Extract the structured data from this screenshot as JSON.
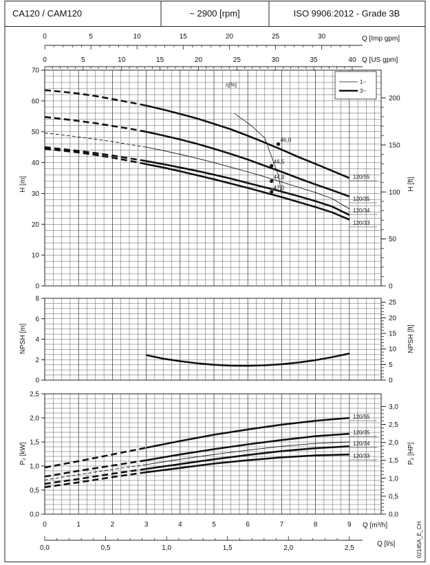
{
  "header": {
    "model": "CA120 / CAM120",
    "speed": "~ 2900 [rpm]",
    "standard": "ISO 9906:2012 - Grade 3B"
  },
  "side_code": "02145A_E_CH",
  "axes": {
    "q_imp": {
      "label": "Q [Imp gpm]",
      "ticks": [
        "0",
        "5",
        "10",
        "15",
        "20",
        "25",
        "30"
      ],
      "values": [
        0,
        5,
        10,
        15,
        20,
        25,
        30
      ]
    },
    "q_us": {
      "label": "Q [US gpm]",
      "ticks": [
        "0",
        "5",
        "10",
        "15",
        "20",
        "25",
        "30",
        "35",
        "40"
      ],
      "values": [
        0,
        5,
        10,
        15,
        20,
        25,
        30,
        35,
        40
      ]
    },
    "q_m3h": {
      "label": "Q [m³/h]",
      "ticks": [
        "0",
        "1",
        "2",
        "3",
        "4",
        "5",
        "6",
        "7",
        "8",
        "9"
      ],
      "values": [
        0,
        1,
        2,
        3,
        4,
        5,
        6,
        7,
        8,
        9
      ]
    },
    "q_ls": {
      "label": "Q [l/s]",
      "ticks": [
        "0,0",
        "0,5",
        "1,0",
        "1,5",
        "2,0",
        "2,5"
      ],
      "values": [
        0,
        0.5,
        1.0,
        1.5,
        2.0,
        2.5
      ]
    }
  },
  "chart_data": [
    {
      "type": "line",
      "name": "head",
      "xlabel": "Q [m³/h]",
      "ylabel": "H [m]",
      "ylabel_right": "H [ft]",
      "xlim": [
        0,
        9.2
      ],
      "ylim": [
        0,
        70
      ],
      "y_ticks": [
        0,
        10,
        20,
        30,
        40,
        50,
        60,
        70
      ],
      "y_tick_labels": [
        "0",
        "10",
        "20",
        "30",
        "40",
        "50",
        "60",
        "70"
      ],
      "y2_ticks_ft": [
        0,
        50,
        100,
        150,
        200
      ],
      "y2_tick_labels": [
        "0",
        "50",
        "100",
        "150",
        "200"
      ],
      "legend": {
        "position": "top-right",
        "entries": [
          {
            "label": "1~",
            "style": "thin"
          },
          {
            "label": "3~",
            "style": "thick"
          }
        ]
      },
      "efficiency_label": "η[%]",
      "series": [
        {
          "name": "120/55",
          "phase": "3~",
          "x": [
            0,
            0.5,
            1,
            1.5,
            2,
            2.5,
            3,
            3.5,
            4,
            4.5,
            5,
            5.5,
            6,
            6.5,
            7,
            7.5,
            8,
            8.5,
            9
          ],
          "y": [
            63.5,
            63,
            62.4,
            61.6,
            60.6,
            59.6,
            58.5,
            57.2,
            55.8,
            54.3,
            52.6,
            50.8,
            48.7,
            46.5,
            44.2,
            41.8,
            39.6,
            37.3,
            35
          ]
        },
        {
          "name": "120/35",
          "phase": "3~",
          "x": [
            0,
            0.5,
            1,
            1.5,
            2,
            2.5,
            3,
            3.5,
            4,
            4.5,
            5,
            5.5,
            6,
            6.5,
            7,
            7.5,
            8,
            8.5,
            9
          ],
          "y": [
            54.8,
            54.2,
            53.5,
            52.8,
            51.9,
            51,
            50,
            48.8,
            47.5,
            46.1,
            44.5,
            42.8,
            41,
            39,
            37,
            34.9,
            32.9,
            31,
            29
          ]
        },
        {
          "name": "120/34",
          "phase": "1~",
          "x": [
            0,
            0.5,
            1,
            1.5,
            2,
            2.5,
            3,
            3.5,
            4,
            4.5,
            5,
            5.5,
            6,
            6.5,
            7,
            7.5,
            8,
            8.5,
            9
          ],
          "y": [
            49.6,
            49,
            48.3,
            47.6,
            46.8,
            45.9,
            45,
            43.9,
            42.7,
            41.4,
            40,
            38.5,
            37,
            35.4,
            33.7,
            32,
            30.3,
            28.3,
            25
          ]
        },
        {
          "name": "120/34",
          "phase": "3~",
          "x": [
            0,
            0.5,
            1,
            1.5,
            2,
            2.5,
            3,
            3.5,
            4,
            4.5,
            5,
            5.5,
            6,
            6.5,
            7,
            7.5,
            8,
            8.5,
            9
          ],
          "y": [
            45,
            44.4,
            43.8,
            43.1,
            42.3,
            41.4,
            40.5,
            39.5,
            38.4,
            37.3,
            36.1,
            34.8,
            33.4,
            32,
            30.6,
            29.1,
            27.5,
            25.7,
            23
          ]
        },
        {
          "name": "120/33",
          "phase": "3~",
          "x": [
            0,
            0.5,
            1,
            1.5,
            2,
            2.5,
            3,
            3.5,
            4,
            4.5,
            5,
            5.5,
            6,
            6.5,
            7,
            7.5,
            8,
            8.5,
            9
          ],
          "y": [
            44.5,
            43.9,
            43.3,
            42.5,
            41.6,
            40.6,
            39.5,
            38.4,
            37.2,
            35.9,
            34.6,
            33.2,
            31.8,
            30.3,
            28.8,
            27.2,
            25.6,
            23.8,
            21.5
          ]
        }
      ],
      "efficiency_points": [
        {
          "label": "46,0",
          "x": 6.9,
          "y": 46
        },
        {
          "label": "46,5",
          "x": 6.7,
          "y": 39
        },
        {
          "label": "44,9",
          "x": 6.7,
          "y": 34
        },
        {
          "label": "47,0",
          "x": 6.7,
          "y": 30.5
        }
      ],
      "efficiency_curve": {
        "x": [
          5.6,
          6.1,
          6.5,
          6.7,
          6.9,
          7.0
        ],
        "y": [
          56,
          52,
          48,
          42,
          36,
          30
        ]
      },
      "curve_labels": [
        "120/55",
        "120/35",
        "120/34",
        "120/33"
      ]
    },
    {
      "type": "line",
      "name": "npsh",
      "xlabel": "Q [m³/h]",
      "ylabel": "NPSH [m]",
      "ylabel_right": "NPSH [ft]",
      "xlim": [
        0,
        9.2
      ],
      "ylim": [
        0,
        8
      ],
      "y_ticks": [
        0,
        2,
        4,
        6,
        8
      ],
      "y_tick_labels": [
        "0",
        "2",
        "4",
        "6",
        "8"
      ],
      "y2_ticks_ft": [
        0,
        5,
        10,
        15,
        20,
        25
      ],
      "y2_tick_labels": [
        "0",
        "5",
        "10",
        "15",
        "20",
        "25"
      ],
      "series": [
        {
          "name": "NPSH",
          "x": [
            3,
            3.5,
            4,
            4.5,
            5,
            5.5,
            6,
            6.5,
            7,
            7.5,
            8,
            8.5,
            9
          ],
          "y": [
            2.45,
            2.1,
            1.85,
            1.65,
            1.5,
            1.42,
            1.4,
            1.45,
            1.55,
            1.72,
            1.95,
            2.25,
            2.6
          ]
        }
      ]
    },
    {
      "type": "line",
      "name": "power",
      "xlabel": "Q [m³/h]",
      "ylabel": "P₂ [kW]",
      "ylabel_right": "P₂ [HP]",
      "xlim": [
        0,
        9.2
      ],
      "ylim": [
        0,
        2.5
      ],
      "y_ticks": [
        0,
        0.5,
        1.0,
        1.5,
        2.0,
        2.5
      ],
      "y_tick_labels": [
        "0,0",
        "0,5",
        "1,0",
        "1,5",
        "2,0",
        "2,5"
      ],
      "y2_ticks_hp": [
        0,
        0.5,
        1.0,
        1.5,
        2.0,
        2.5,
        3.0
      ],
      "y2_tick_labels": [
        "0,0",
        "0,5",
        "1,0",
        "1,5",
        "2,0",
        "2,5",
        "3,0"
      ],
      "series": [
        {
          "name": "120/55",
          "phase": "3~",
          "x": [
            0,
            1,
            2,
            3,
            4,
            5,
            6,
            7,
            8,
            9
          ],
          "y": [
            0.97,
            1.1,
            1.24,
            1.38,
            1.52,
            1.65,
            1.76,
            1.86,
            1.94,
            2.0
          ]
        },
        {
          "name": "120/35",
          "phase": "3~",
          "x": [
            0,
            1,
            2,
            3,
            4,
            5,
            6,
            7,
            8,
            9
          ],
          "y": [
            0.78,
            0.9,
            1.01,
            1.12,
            1.24,
            1.35,
            1.45,
            1.54,
            1.62,
            1.67
          ]
        },
        {
          "name": "120/34",
          "phase": "1~",
          "x": [
            0,
            1,
            2,
            3,
            4,
            5,
            6,
            7,
            8,
            9
          ],
          "y": [
            0.71,
            0.82,
            0.93,
            1.03,
            1.14,
            1.24,
            1.33,
            1.41,
            1.47,
            1.5
          ]
        },
        {
          "name": "120/34",
          "phase": "3~",
          "x": [
            0,
            1,
            2,
            3,
            4,
            5,
            6,
            7,
            8,
            9
          ],
          "y": [
            0.63,
            0.73,
            0.84,
            0.94,
            1.04,
            1.14,
            1.23,
            1.31,
            1.37,
            1.41
          ]
        },
        {
          "name": "120/33",
          "phase": "3~",
          "x": [
            0,
            1,
            2,
            3,
            4,
            5,
            6,
            7,
            8,
            9
          ],
          "y": [
            0.56,
            0.66,
            0.77,
            0.87,
            0.96,
            1.05,
            1.12,
            1.18,
            1.22,
            1.24
          ]
        }
      ],
      "curve_labels": [
        "120/55",
        "120/35",
        "120/34",
        "120/33"
      ]
    }
  ]
}
